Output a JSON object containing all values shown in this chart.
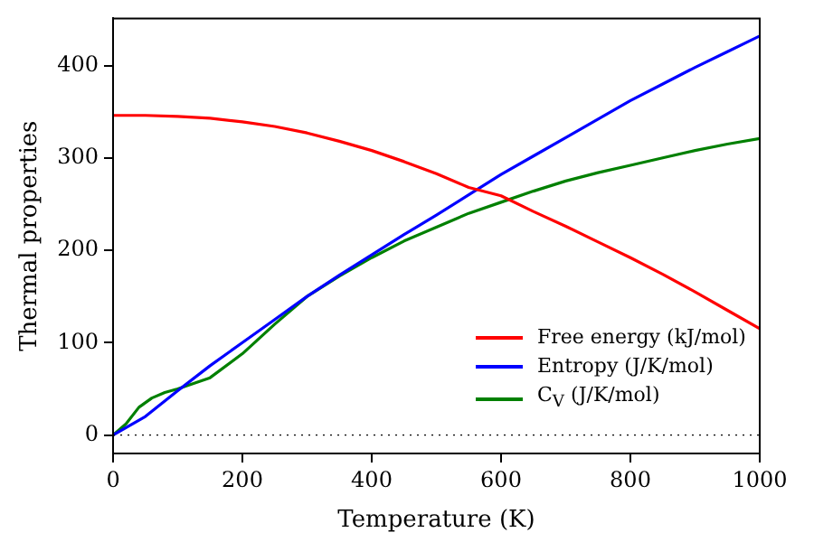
{
  "chart_data": {
    "type": "line",
    "xlabel": "Temperature (K)",
    "ylabel": "Thermal properties",
    "x": [
      0,
      50,
      100,
      150,
      200,
      250,
      300,
      350,
      400,
      450,
      500,
      550,
      600,
      650,
      700,
      750,
      800,
      850,
      900,
      950,
      1000
    ],
    "series": [
      {
        "name": "Free energy (kJ/mol)",
        "color": "#ff0000",
        "values": [
          346,
          346,
          345,
          343,
          339,
          334,
          327,
          318,
          308,
          296,
          283,
          268,
          259,
          242,
          226,
          209,
          192,
          174,
          155,
          135,
          115
        ]
      },
      {
        "name": "Entropy (J/K/mol)",
        "color": "#0000ff",
        "values": [
          0,
          20,
          48,
          75,
          100,
          125,
          150,
          173,
          195,
          217,
          238,
          260,
          282,
          302,
          322,
          342,
          362,
          380,
          398,
          415,
          432
        ]
      },
      {
        "x": [
          0,
          20,
          40,
          60,
          80,
          100,
          150,
          200,
          250,
          300,
          350,
          400,
          450,
          500,
          550,
          600,
          650,
          700,
          750,
          800,
          850,
          900,
          950,
          1000
        ],
        "name": "C$_{V}$ (J/K/mol)",
        "color": "#008000",
        "values": [
          0,
          12,
          30,
          40,
          46,
          50,
          62,
          88,
          120,
          150,
          172,
          192,
          210,
          225,
          240,
          252,
          264,
          275,
          284,
          292,
          300,
          308,
          315,
          321
        ]
      }
    ],
    "xlim": [
      0,
      1000
    ],
    "xticks": [
      0,
      200,
      400,
      600,
      800,
      1000
    ],
    "ylim": [
      -20,
      451
    ],
    "yticks": [
      0,
      100,
      200,
      300,
      400
    ],
    "ref_lines": [
      {
        "axis": "y",
        "value": 0,
        "color": "#000000",
        "line_style": "dotted"
      }
    ],
    "legend": "bottom right",
    "grid": false,
    "marker": "none",
    "line_style": "solid"
  }
}
